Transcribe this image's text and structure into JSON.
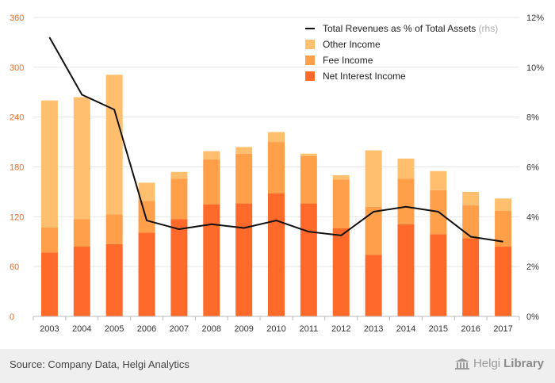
{
  "chart_data": {
    "type": "bar",
    "stacked": true,
    "categories": [
      "2003",
      "2004",
      "2005",
      "2006",
      "2007",
      "2008",
      "2009",
      "2010",
      "2011",
      "2012",
      "2013",
      "2014",
      "2015",
      "2016",
      "2017"
    ],
    "series": [
      {
        "name": "Net Interest Income",
        "color": "#ff6a2a",
        "values": [
          77,
          84,
          87,
          101,
          117,
          135,
          136,
          148,
          136,
          106,
          74,
          111,
          99,
          94,
          84
        ]
      },
      {
        "name": "Fee Income",
        "color": "#ff9f4a",
        "values": [
          30,
          33,
          36,
          38,
          49,
          54,
          60,
          62,
          57,
          59,
          58,
          55,
          53,
          40,
          43
        ]
      },
      {
        "name": "Other Income",
        "color": "#ffbf6e",
        "values": [
          153,
          147,
          168,
          22,
          8,
          10,
          8,
          12,
          3,
          5,
          68,
          24,
          23,
          16,
          15
        ]
      }
    ],
    "line": {
      "name": "Total Revenues as % of Total Assets",
      "suffix": "(rhs)",
      "axis": "right",
      "color": "#111111",
      "values": [
        11.2,
        8.9,
        8.3,
        3.85,
        3.5,
        3.7,
        3.55,
        3.85,
        3.4,
        3.25,
        4.2,
        4.4,
        4.2,
        3.2,
        3.0
      ]
    },
    "y_left": {
      "min": 0,
      "max": 360,
      "ticks": [
        0,
        60,
        120,
        180,
        240,
        300,
        360
      ],
      "color": "#f26b21"
    },
    "y_right": {
      "min": 0,
      "max": 12,
      "ticks": [
        "0%",
        "2%",
        "4%",
        "6%",
        "8%",
        "10%",
        "12%"
      ]
    },
    "legend": {
      "placement": "top-right",
      "items": [
        {
          "label": "Total Revenues as % of Total Assets",
          "suffix": "(rhs)",
          "kind": "line",
          "color": "#111111"
        },
        {
          "label": "Other Income",
          "kind": "box",
          "color": "#ffbf6e"
        },
        {
          "label": "Fee Income",
          "kind": "box",
          "color": "#ff9f4a"
        },
        {
          "label": "Net Interest Income",
          "kind": "box",
          "color": "#ff6a2a"
        }
      ]
    },
    "grid": true
  },
  "footer": {
    "source": "Source: Company Data, Helgi Analytics",
    "brand_light": "Helgi",
    "brand_bold": "Library"
  }
}
